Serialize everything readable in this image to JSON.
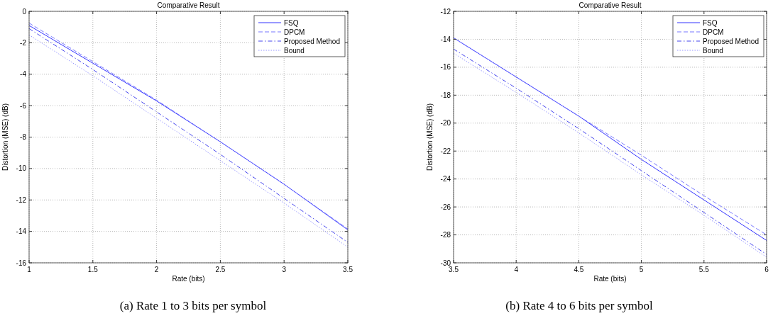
{
  "chart_data": [
    {
      "type": "line",
      "title": "Comparative Result",
      "xlabel": "Rate (bits)",
      "ylabel": "Distortion (MSE) (dB)",
      "annotations": [
        "(a) Rate 1 to 3 bits per symbol"
      ],
      "x": [
        1,
        1.5,
        2,
        2.5,
        3,
        3.5
      ],
      "xlim": [
        1,
        3.5
      ],
      "xticks": [
        1,
        1.5,
        2,
        2.5,
        3,
        3.5
      ],
      "ylim": [
        -16,
        0
      ],
      "yticks": [
        -16,
        -14,
        -12,
        -10,
        -8,
        -6,
        -4,
        -2,
        0
      ],
      "grid": true,
      "legend": "top right",
      "series": [
        {
          "name": "FSQ",
          "color": "#3333ff",
          "line_style": "solid",
          "values": [
            -0.9,
            -3.3,
            -5.7,
            -8.3,
            -11.0,
            -13.9
          ]
        },
        {
          "name": "DPCM",
          "color": "#7777ff",
          "line_style": "dashed",
          "values": [
            -0.75,
            -3.2,
            -5.65,
            -8.3,
            -11.0,
            -13.85
          ]
        },
        {
          "name": "Proposed Method",
          "color": "#4444ee",
          "line_style": "dashdot",
          "values": [
            -1.1,
            -3.7,
            -6.4,
            -9.1,
            -11.9,
            -14.7
          ]
        },
        {
          "name": "Bound",
          "color": "#9999ff",
          "line_style": "dotted",
          "values": [
            -1.5,
            -4.1,
            -6.8,
            -9.5,
            -12.2,
            -15.0
          ]
        }
      ]
    },
    {
      "type": "line",
      "title": "Comparative Result",
      "xlabel": "Rate (bits)",
      "ylabel": "Distortion (MSE) (dB)",
      "annotations": [
        "(b) Rate 4 to 6 bits per symbol"
      ],
      "x": [
        3.5,
        4,
        4.5,
        5,
        5.5,
        6
      ],
      "xlim": [
        3.5,
        6
      ],
      "xticks": [
        3.5,
        4,
        4.5,
        5,
        5.5,
        6
      ],
      "ylim": [
        -30,
        -12
      ],
      "yticks": [
        -30,
        -28,
        -26,
        -24,
        -22,
        -20,
        -18,
        -16,
        -14,
        -12
      ],
      "grid": true,
      "legend": "top right",
      "series": [
        {
          "name": "FSQ",
          "color": "#3333ff",
          "line_style": "solid",
          "values": [
            -13.9,
            -16.7,
            -19.5,
            -22.6,
            -25.5,
            -28.4
          ]
        },
        {
          "name": "DPCM",
          "color": "#7777ff",
          "line_style": "dashed",
          "values": [
            -13.9,
            -16.7,
            -19.5,
            -22.3,
            -25.2,
            -28.0
          ]
        },
        {
          "name": "Proposed Method",
          "color": "#4444ee",
          "line_style": "dashdot",
          "values": [
            -14.7,
            -17.5,
            -20.4,
            -23.4,
            -26.4,
            -29.4
          ]
        },
        {
          "name": "Bound",
          "color": "#9999ff",
          "line_style": "dotted",
          "values": [
            -15.0,
            -17.8,
            -20.7,
            -23.7,
            -26.6,
            -29.6
          ]
        }
      ]
    }
  ]
}
